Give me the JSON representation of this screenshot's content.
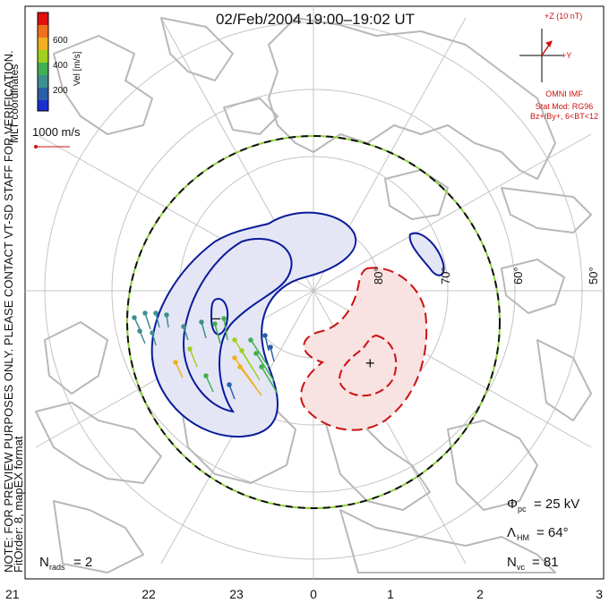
{
  "title": "02/Feb/2004 19:00–19:02 UT",
  "colorbar": {
    "label": "Vel [m/s]",
    "ticks": [
      "600",
      "400",
      "200"
    ],
    "colors": [
      "#e01010",
      "#f07020",
      "#f0b020",
      "#a0d020",
      "#40b050",
      "#3f8f8f",
      "#2b5fa8",
      "#1a2fd0"
    ]
  },
  "coords_label": "MLT coordinates",
  "scale_vector": {
    "label": "1000 m/s"
  },
  "imf": {
    "z_label": "+Z (10 nT)",
    "y_label": "+Y",
    "source": "OMNI IMF",
    "stat_mod": "Stat Mod: RG96",
    "bin": "Bz+/By+, 6<BT<12"
  },
  "note_left": "NOTE: FOR PREVIEW PURPOSES ONLY. PLEASE CONTACT VT-SD STAFF FOR VERIFICATION.",
  "fit_info": "FitOrder: 8, mapEX format",
  "latitude_labels": [
    "80°",
    "70°",
    "60°",
    "50°"
  ],
  "stats": {
    "phi_symbol": "Φ",
    "phi_sub": "pc",
    "phi_value": "= 25 kV",
    "lambda_symbol": "Λ",
    "lambda_sub": "HM",
    "lambda_value": "= 64°",
    "nvc_symbol": "N",
    "nvc_sub": "vc",
    "nvc_value": "= 81",
    "nrads_symbol": "N",
    "nrads_sub": "rads",
    "nrads_value": "= 2"
  },
  "mlt_ticks": [
    "21",
    "22",
    "23",
    "0",
    "1",
    "2",
    "3"
  ],
  "colors": {
    "negative_cell": "#0a1a9a",
    "negative_fill": "#e4e6f6",
    "positive_cell": "#cc1111",
    "positive_fill": "#f8e2e2",
    "boundary_dash_a": "#111111",
    "boundary_dash_b": "#8ccf3a",
    "coastline": "#b8b8b8",
    "grid": "#c4c4c4"
  }
}
